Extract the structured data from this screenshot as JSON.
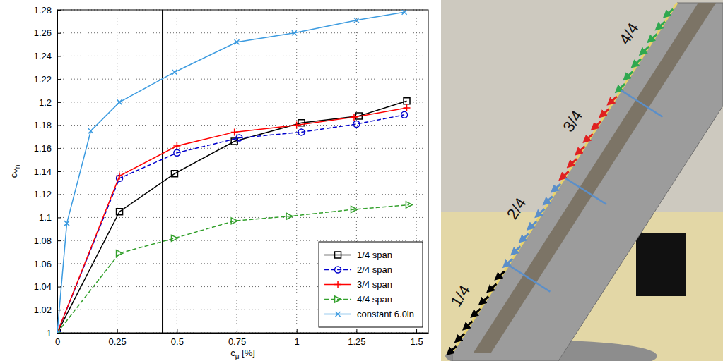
{
  "chart_data": {
    "type": "line",
    "x_label": "cμ [%]",
    "y_label": "cYn",
    "xlim": [
      0,
      1.55
    ],
    "ylim": [
      1,
      1.28
    ],
    "xticks": [
      0,
      0.25,
      0.5,
      0.75,
      1,
      1.25,
      1.5
    ],
    "yticks": [
      1,
      1.02,
      1.04,
      1.06,
      1.08,
      1.1,
      1.12,
      1.14,
      1.16,
      1.18,
      1.2,
      1.22,
      1.24,
      1.26,
      1.28
    ],
    "grid": true,
    "legend": "lower right",
    "vline": 0.44,
    "series": [
      {
        "name": "1/4 span",
        "color": "#000000",
        "marker": "square",
        "line_style": "solid",
        "x": [
          0,
          0.26,
          0.49,
          0.74,
          1.02,
          1.26,
          1.46
        ],
        "values": [
          1,
          1.105,
          1.138,
          1.166,
          1.182,
          1.188,
          1.201
        ]
      },
      {
        "name": "2/4 span",
        "color": "#0000cc",
        "marker": "circle",
        "line_style": "dashed",
        "x": [
          0,
          0.26,
          0.5,
          0.76,
          1.02,
          1.25,
          1.45
        ],
        "values": [
          1,
          1.134,
          1.156,
          1.169,
          1.174,
          1.181,
          1.189
        ]
      },
      {
        "name": "3/4 span",
        "color": "#ff0000",
        "marker": "plus",
        "line_style": "solid",
        "x": [
          0,
          0.26,
          0.5,
          0.74,
          1.0,
          1.24,
          1.46
        ],
        "values": [
          1,
          1.136,
          1.162,
          1.174,
          1.18,
          1.187,
          1.195
        ]
      },
      {
        "name": "4/4 span",
        "color": "#33a02c",
        "marker": "triangle-right",
        "line_style": "dashed",
        "x": [
          0,
          0.26,
          0.49,
          0.74,
          0.97,
          1.24,
          1.47
        ],
        "values": [
          1,
          1.069,
          1.082,
          1.097,
          1.101,
          1.107,
          1.111
        ]
      },
      {
        "name": "constant 6.0in",
        "color": "#3c9be0",
        "marker": "x",
        "line_style": "solid",
        "x": [
          0,
          0.04,
          0.14,
          0.26,
          0.49,
          0.75,
          0.99,
          1.25,
          1.45
        ],
        "values": [
          1,
          1.095,
          1.175,
          1.2,
          1.226,
          1.252,
          1.26,
          1.271,
          1.278
        ]
      }
    ]
  },
  "photo": {
    "labels": [
      "1/4",
      "2/4",
      "3/4",
      "4/4"
    ]
  }
}
